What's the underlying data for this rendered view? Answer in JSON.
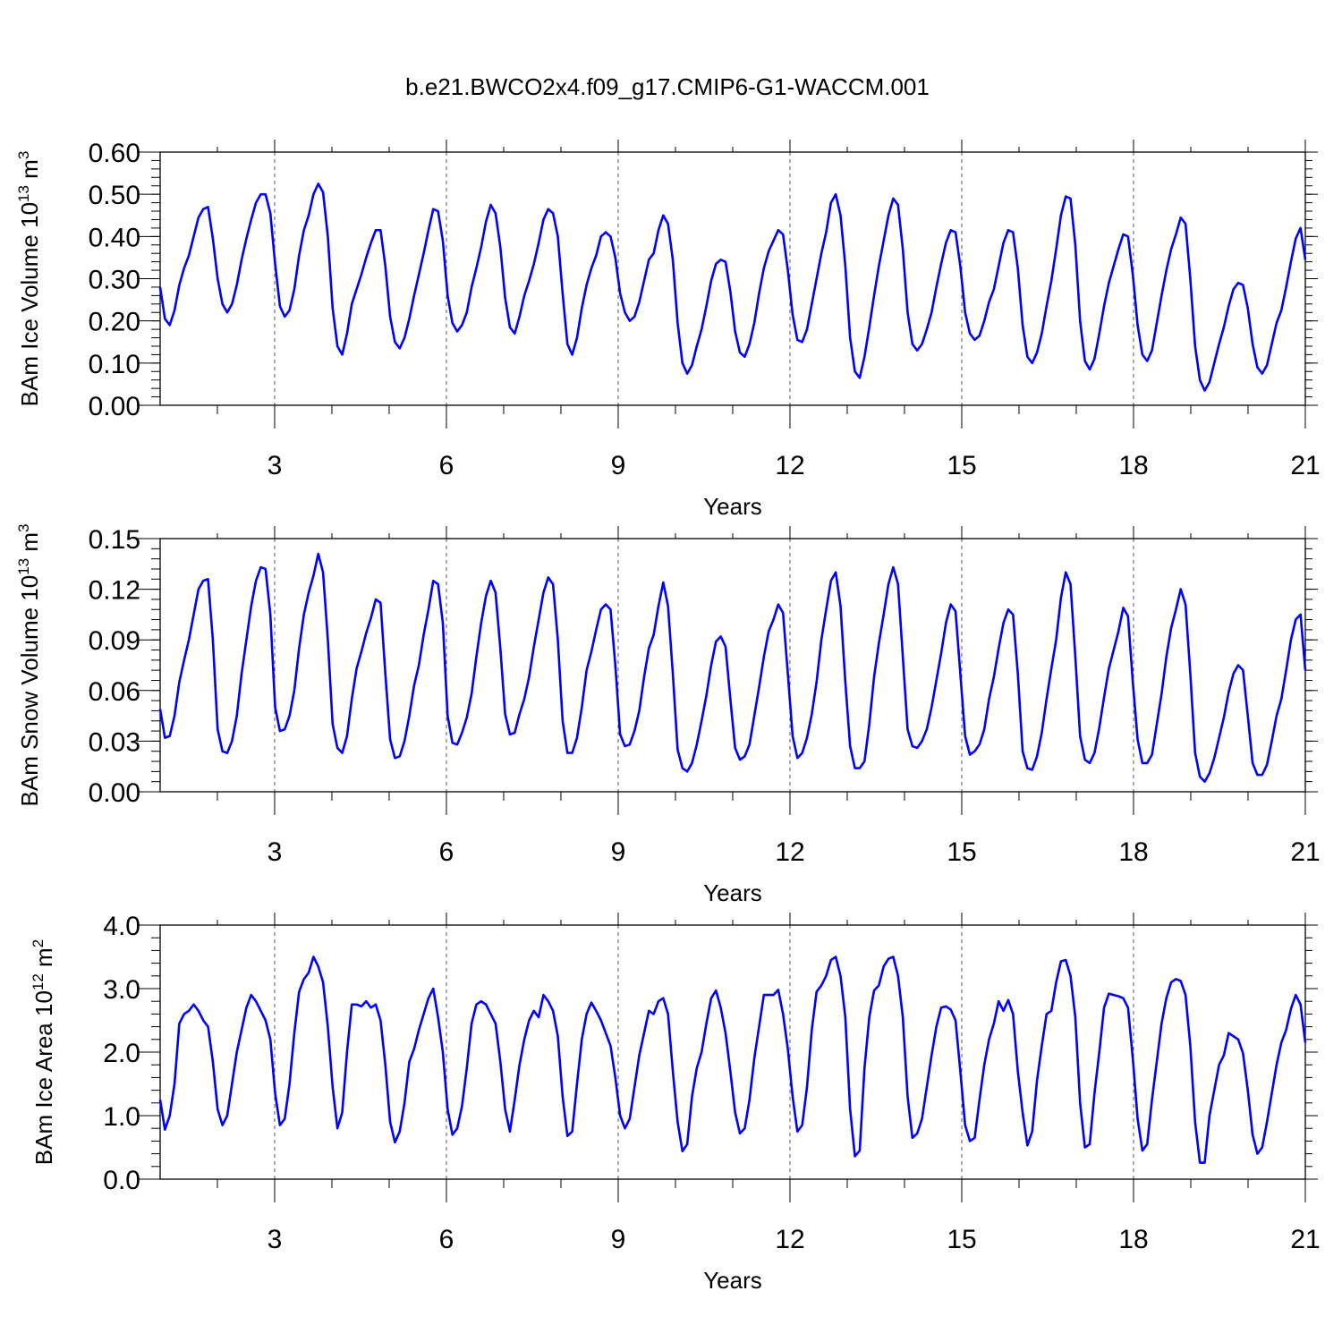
{
  "title": "b.e21.BWCO2x4.f09_g17.CMIP6-G1-WACCM.001",
  "colors": {
    "line": "#0000ff",
    "grid": "#555555",
    "axis": "#000000"
  },
  "chart_data": [
    {
      "type": "line",
      "ylabel_main": "BAm Ice Volume 10",
      "ylabel_sup1": "13",
      "ylabel_mid": " m",
      "ylabel_sup2": "3",
      "xlabel": "Years",
      "xlim": [
        1,
        21
      ],
      "ylim": [
        0,
        0.6
      ],
      "x_ticks": [
        "3",
        "6",
        "9",
        "12",
        "15",
        "18",
        "21"
      ],
      "y_ticks": [
        "0.00",
        "0.10",
        "0.20",
        "0.30",
        "0.40",
        "0.50",
        "0.60"
      ],
      "vertical_dashed_grid": true,
      "series": [
        {
          "values": [
            0.28,
            0.205,
            0.19,
            0.225,
            0.285,
            0.325,
            0.355,
            0.4,
            0.445,
            0.465,
            0.47,
            0.395,
            0.3,
            0.24,
            0.22,
            0.24,
            0.285,
            0.345,
            0.395,
            0.44,
            0.48,
            0.5,
            0.5,
            0.455,
            0.335,
            0.235,
            0.21,
            0.225,
            0.275,
            0.355,
            0.415,
            0.45,
            0.5,
            0.525,
            0.505,
            0.4,
            0.23,
            0.14,
            0.12,
            0.17,
            0.24,
            0.275,
            0.31,
            0.35,
            0.385,
            0.415,
            0.415,
            0.33,
            0.21,
            0.15,
            0.135,
            0.16,
            0.205,
            0.26,
            0.31,
            0.36,
            0.415,
            0.465,
            0.46,
            0.39,
            0.26,
            0.195,
            0.175,
            0.19,
            0.22,
            0.28,
            0.325,
            0.375,
            0.435,
            0.475,
            0.455,
            0.375,
            0.255,
            0.185,
            0.17,
            0.21,
            0.26,
            0.295,
            0.335,
            0.385,
            0.44,
            0.465,
            0.455,
            0.4,
            0.265,
            0.145,
            0.12,
            0.16,
            0.23,
            0.285,
            0.325,
            0.355,
            0.4,
            0.41,
            0.4,
            0.35,
            0.265,
            0.22,
            0.2,
            0.21,
            0.245,
            0.295,
            0.345,
            0.36,
            0.415,
            0.45,
            0.43,
            0.345,
            0.195,
            0.1,
            0.075,
            0.095,
            0.14,
            0.18,
            0.235,
            0.295,
            0.335,
            0.345,
            0.34,
            0.27,
            0.175,
            0.125,
            0.115,
            0.145,
            0.195,
            0.265,
            0.325,
            0.365,
            0.39,
            0.415,
            0.405,
            0.32,
            0.215,
            0.155,
            0.15,
            0.18,
            0.24,
            0.3,
            0.36,
            0.41,
            0.48,
            0.5,
            0.45,
            0.33,
            0.16,
            0.08,
            0.065,
            0.115,
            0.185,
            0.26,
            0.33,
            0.39,
            0.45,
            0.49,
            0.475,
            0.37,
            0.22,
            0.145,
            0.13,
            0.145,
            0.18,
            0.22,
            0.28,
            0.335,
            0.385,
            0.415,
            0.41,
            0.33,
            0.22,
            0.17,
            0.155,
            0.165,
            0.2,
            0.245,
            0.275,
            0.33,
            0.385,
            0.415,
            0.41,
            0.325,
            0.19,
            0.115,
            0.1,
            0.125,
            0.17,
            0.235,
            0.295,
            0.37,
            0.45,
            0.495,
            0.49,
            0.38,
            0.2,
            0.105,
            0.085,
            0.11,
            0.17,
            0.235,
            0.29,
            0.33,
            0.37,
            0.405,
            0.4,
            0.31,
            0.19,
            0.12,
            0.105,
            0.13,
            0.195,
            0.26,
            0.32,
            0.37,
            0.405,
            0.445,
            0.43,
            0.3,
            0.14,
            0.06,
            0.035,
            0.055,
            0.1,
            0.145,
            0.185,
            0.235,
            0.275,
            0.29,
            0.285,
            0.23,
            0.145,
            0.09,
            0.075,
            0.095,
            0.145,
            0.195,
            0.225,
            0.28,
            0.34,
            0.395,
            0.42,
            0.345
          ]
        }
      ]
    },
    {
      "type": "line",
      "ylabel_main": "BAm Snow Volume 10",
      "ylabel_sup1": "13",
      "ylabel_mid": " m",
      "ylabel_sup2": "3",
      "xlabel": "Years",
      "xlim": [
        1,
        21
      ],
      "ylim": [
        0,
        0.15
      ],
      "x_ticks": [
        "3",
        "6",
        "9",
        "12",
        "15",
        "18",
        "21"
      ],
      "y_ticks": [
        "0.00",
        "0.03",
        "0.06",
        "0.09",
        "0.12",
        "0.15"
      ],
      "vertical_dashed_grid": true,
      "series": [
        {
          "values": [
            0.049,
            0.032,
            0.033,
            0.045,
            0.065,
            0.078,
            0.09,
            0.105,
            0.12,
            0.125,
            0.126,
            0.09,
            0.037,
            0.024,
            0.023,
            0.03,
            0.045,
            0.07,
            0.09,
            0.11,
            0.125,
            0.133,
            0.132,
            0.105,
            0.05,
            0.036,
            0.037,
            0.045,
            0.06,
            0.085,
            0.105,
            0.118,
            0.128,
            0.141,
            0.13,
            0.09,
            0.04,
            0.026,
            0.023,
            0.033,
            0.055,
            0.073,
            0.083,
            0.094,
            0.103,
            0.114,
            0.112,
            0.07,
            0.031,
            0.02,
            0.021,
            0.03,
            0.045,
            0.063,
            0.075,
            0.093,
            0.108,
            0.125,
            0.123,
            0.1,
            0.045,
            0.029,
            0.028,
            0.035,
            0.044,
            0.058,
            0.08,
            0.1,
            0.116,
            0.125,
            0.118,
            0.085,
            0.046,
            0.034,
            0.035,
            0.046,
            0.055,
            0.068,
            0.086,
            0.102,
            0.118,
            0.127,
            0.123,
            0.09,
            0.042,
            0.023,
            0.023,
            0.032,
            0.05,
            0.072,
            0.083,
            0.096,
            0.108,
            0.111,
            0.108,
            0.075,
            0.034,
            0.027,
            0.028,
            0.036,
            0.048,
            0.068,
            0.085,
            0.093,
            0.11,
            0.124,
            0.11,
            0.07,
            0.025,
            0.014,
            0.012,
            0.017,
            0.028,
            0.042,
            0.057,
            0.075,
            0.089,
            0.092,
            0.086,
            0.055,
            0.026,
            0.019,
            0.021,
            0.028,
            0.045,
            0.062,
            0.08,
            0.095,
            0.102,
            0.111,
            0.106,
            0.07,
            0.033,
            0.02,
            0.023,
            0.032,
            0.046,
            0.065,
            0.09,
            0.108,
            0.125,
            0.13,
            0.11,
            0.065,
            0.027,
            0.014,
            0.014,
            0.018,
            0.04,
            0.068,
            0.088,
            0.105,
            0.123,
            0.133,
            0.123,
            0.08,
            0.037,
            0.027,
            0.026,
            0.03,
            0.037,
            0.05,
            0.066,
            0.082,
            0.1,
            0.111,
            0.107,
            0.07,
            0.033,
            0.022,
            0.024,
            0.028,
            0.037,
            0.055,
            0.068,
            0.085,
            0.1,
            0.108,
            0.105,
            0.07,
            0.024,
            0.014,
            0.013,
            0.021,
            0.035,
            0.055,
            0.073,
            0.09,
            0.115,
            0.13,
            0.123,
            0.08,
            0.033,
            0.019,
            0.017,
            0.023,
            0.038,
            0.056,
            0.073,
            0.084,
            0.095,
            0.109,
            0.104,
            0.065,
            0.031,
            0.017,
            0.017,
            0.022,
            0.04,
            0.058,
            0.08,
            0.097,
            0.108,
            0.12,
            0.111,
            0.07,
            0.023,
            0.009,
            0.006,
            0.011,
            0.02,
            0.032,
            0.044,
            0.059,
            0.07,
            0.075,
            0.072,
            0.045,
            0.017,
            0.01,
            0.01,
            0.016,
            0.03,
            0.045,
            0.055,
            0.072,
            0.09,
            0.102,
            0.105,
            0.072
          ]
        }
      ]
    },
    {
      "type": "line",
      "ylabel_main": "BAm Ice Area 10",
      "ylabel_sup1": "12",
      "ylabel_mid": " m",
      "ylabel_sup2": "2",
      "xlabel": "Years",
      "xlim": [
        1,
        21
      ],
      "ylim": [
        0,
        4
      ],
      "x_ticks": [
        "3",
        "6",
        "9",
        "12",
        "15",
        "18",
        "21"
      ],
      "y_ticks": [
        "0.0",
        "1.0",
        "2.0",
        "3.0",
        "4.0"
      ],
      "vertical_dashed_grid": true,
      "series": [
        {
          "values": [
            1.25,
            0.78,
            1.0,
            1.5,
            2.45,
            2.6,
            2.65,
            2.75,
            2.65,
            2.5,
            2.4,
            1.85,
            1.1,
            0.85,
            1.0,
            1.5,
            2.0,
            2.35,
            2.7,
            2.9,
            2.8,
            2.65,
            2.5,
            2.2,
            1.35,
            0.85,
            0.95,
            1.5,
            2.3,
            2.95,
            3.15,
            3.25,
            3.5,
            3.35,
            3.1,
            2.4,
            1.45,
            0.8,
            1.05,
            2.0,
            2.75,
            2.75,
            2.72,
            2.8,
            2.7,
            2.75,
            2.5,
            1.8,
            0.9,
            0.58,
            0.75,
            1.2,
            1.85,
            2.05,
            2.35,
            2.6,
            2.85,
            3.0,
            2.55,
            2.0,
            1.1,
            0.7,
            0.8,
            1.15,
            1.75,
            2.45,
            2.75,
            2.8,
            2.75,
            2.6,
            2.45,
            1.85,
            1.1,
            0.75,
            1.25,
            1.8,
            2.2,
            2.5,
            2.65,
            2.55,
            2.9,
            2.8,
            2.65,
            2.25,
            1.3,
            0.68,
            0.75,
            1.5,
            2.2,
            2.6,
            2.78,
            2.65,
            2.5,
            2.3,
            2.1,
            1.6,
            1.0,
            0.8,
            0.95,
            1.45,
            1.95,
            2.3,
            2.65,
            2.6,
            2.8,
            2.85,
            2.6,
            1.7,
            0.9,
            0.44,
            0.55,
            1.3,
            1.75,
            2.0,
            2.45,
            2.85,
            2.97,
            2.7,
            2.3,
            1.7,
            1.05,
            0.72,
            0.8,
            1.25,
            1.9,
            2.4,
            2.9,
            2.9,
            2.9,
            2.98,
            2.6,
            2.05,
            1.3,
            0.75,
            0.85,
            1.45,
            2.35,
            2.95,
            3.05,
            3.2,
            3.45,
            3.5,
            3.2,
            2.55,
            1.1,
            0.36,
            0.45,
            1.75,
            2.55,
            2.97,
            3.05,
            3.35,
            3.47,
            3.5,
            3.2,
            2.55,
            1.3,
            0.65,
            0.72,
            0.95,
            1.45,
            1.95,
            2.4,
            2.7,
            2.72,
            2.67,
            2.5,
            1.7,
            0.85,
            0.6,
            0.65,
            1.25,
            1.8,
            2.2,
            2.45,
            2.8,
            2.65,
            2.82,
            2.6,
            1.7,
            1.05,
            0.53,
            0.75,
            1.55,
            2.1,
            2.6,
            2.65,
            3.1,
            3.43,
            3.45,
            3.2,
            2.55,
            1.2,
            0.5,
            0.55,
            1.35,
            2.0,
            2.7,
            2.92,
            2.9,
            2.88,
            2.85,
            2.7,
            1.9,
            0.95,
            0.45,
            0.55,
            1.25,
            1.85,
            2.45,
            2.85,
            3.1,
            3.15,
            3.12,
            2.9,
            2.1,
            0.9,
            0.26,
            0.26,
            1.0,
            1.4,
            1.8,
            1.95,
            2.3,
            2.25,
            2.2,
            1.98,
            1.4,
            0.7,
            0.4,
            0.5,
            0.9,
            1.35,
            1.8,
            2.15,
            2.35,
            2.68,
            2.9,
            2.75,
            2.15
          ]
        }
      ]
    }
  ]
}
